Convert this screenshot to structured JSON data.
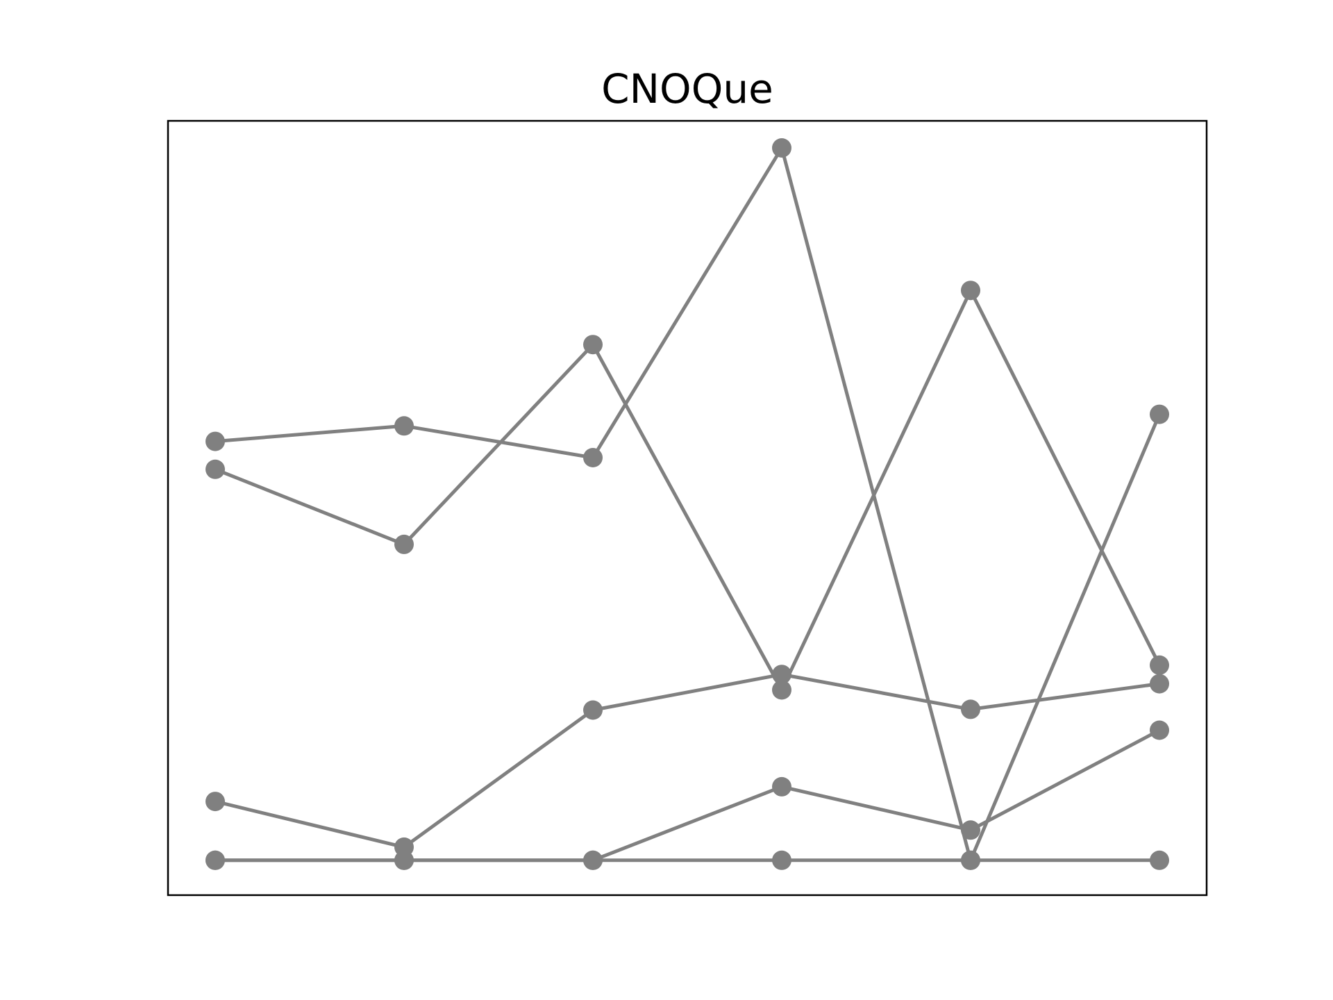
{
  "chart_data": {
    "type": "line",
    "title": "CNOQue",
    "xlabel": "",
    "ylabel": "",
    "x": [
      0,
      1,
      2,
      3,
      4,
      5
    ],
    "xlim": [
      -0.25,
      5.25
    ],
    "ylim": [
      -0.045,
      0.955
    ],
    "grid": false,
    "axes_ticks": false,
    "color": "#808080",
    "series": [
      {
        "values": [
          0.541,
          0.561,
          0.52,
          0.92,
          0.0,
          0.576
        ]
      },
      {
        "values": [
          0.505,
          0.408,
          0.666,
          0.22,
          0.736,
          0.252
        ]
      },
      {
        "values": [
          0.076,
          0.017,
          0.194,
          0.24,
          0.195,
          0.228
        ]
      },
      {
        "values": [
          0.0,
          0.0,
          0.0,
          0.095,
          0.039,
          0.168
        ]
      },
      {
        "values": [
          0.0,
          0.0,
          0.0,
          0.0,
          0.0,
          0.0
        ]
      }
    ]
  }
}
